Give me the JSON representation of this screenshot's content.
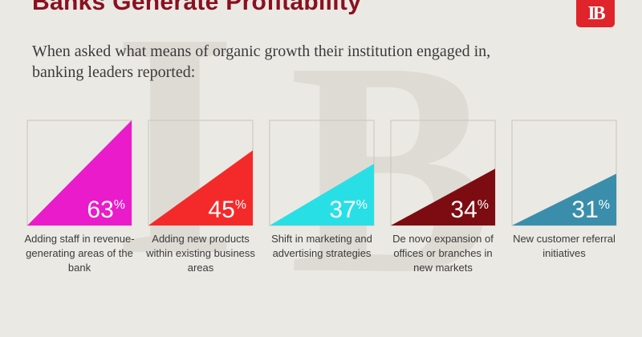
{
  "header": {
    "title": "Banks Generate Profitability",
    "logo_text": "IB"
  },
  "intro": "When asked what means of organic growth their institution engaged in, banking leaders reported:",
  "colors": {
    "title": "#8a1020",
    "logo": "#e0242b",
    "background": "#ebe9e4"
  },
  "chart_data": {
    "type": "bar",
    "categories": [
      "Adding staff in revenue-generating areas of the bank",
      "Adding new products within existing business areas",
      "Shift in marketing and advertising strategies",
      "De novo expansion of offices or branches in new markets",
      "New customer referral initiatives"
    ],
    "values": [
      63,
      45,
      37,
      34,
      31
    ],
    "value_labels": [
      "63",
      "45",
      "37",
      "34",
      "31"
    ],
    "unit": "%",
    "colors": [
      "#ea1bcb",
      "#f42a2a",
      "#29dfe6",
      "#7d0c12",
      "#3a8eac"
    ],
    "title": "",
    "xlabel": "",
    "ylabel": ""
  }
}
